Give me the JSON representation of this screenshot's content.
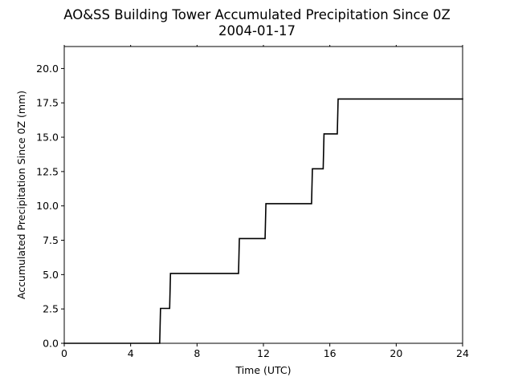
{
  "chart_data": {
    "type": "line",
    "title": "AO&SS Building Tower Accumulated Precipitation Since 0Z",
    "subtitle": "2004-01-17",
    "xlabel": "Time (UTC)",
    "ylabel": "Accumulated Precipitation Since 0Z (mm)",
    "xlim": [
      0,
      24
    ],
    "ylim": [
      0,
      21.6
    ],
    "x_ticks": [
      0,
      4,
      8,
      12,
      16,
      20,
      24
    ],
    "x_tick_labels": [
      "0",
      "4",
      "8",
      "12",
      "16",
      "20",
      "24"
    ],
    "y_ticks": [
      0.0,
      2.5,
      5.0,
      7.5,
      10.0,
      12.5,
      15.0,
      17.5,
      20.0
    ],
    "y_tick_labels": [
      "0.0",
      "2.5",
      "5.0",
      "7.5",
      "10.0",
      "12.5",
      "15.0",
      "17.5",
      "20.0"
    ],
    "grid": false,
    "series": [
      {
        "color": "#000000",
        "x": [
          0,
          5.75,
          5.8,
          6.35,
          6.4,
          10.5,
          10.55,
          12.1,
          12.15,
          14.9,
          14.95,
          15.6,
          15.65,
          16.45,
          16.5,
          24
        ],
        "y": [
          0,
          0,
          2.54,
          2.54,
          5.08,
          5.08,
          7.62,
          7.62,
          10.16,
          10.16,
          12.7,
          12.7,
          15.24,
          15.24,
          17.78,
          17.78
        ]
      }
    ]
  }
}
